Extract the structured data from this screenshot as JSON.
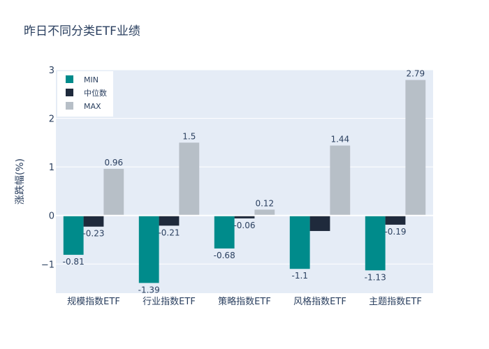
{
  "chart_data": {
    "type": "bar",
    "title": "昨日不同分类ETF业绩",
    "xlabel": "",
    "ylabel": "涨跌幅(%)",
    "categories": [
      "规模指数ETF",
      "行业指数ETF",
      "策略指数ETF",
      "风格指数ETF",
      "主题指数ETF"
    ],
    "series": [
      {
        "name": "MIN",
        "color": "#008b8b",
        "values": [
          -0.81,
          -1.39,
          -0.68,
          -1.1,
          -1.13
        ],
        "labels": [
          "-0.81",
          "-1.39",
          "-0.68",
          "-1.1",
          "-1.13"
        ]
      },
      {
        "name": "中位数",
        "color": "#1f2a3c",
        "values": [
          -0.23,
          -0.21,
          -0.06,
          -0.32,
          -0.19
        ],
        "labels": [
          "-0.23",
          "-0.21",
          "-0.06",
          "",
          "-0.19"
        ]
      },
      {
        "name": "MAX",
        "color": "#b7bfc7",
        "values": [
          0.96,
          1.5,
          0.12,
          1.44,
          2.79
        ],
        "labels": [
          "0.96",
          "1.5",
          "0.12",
          "1.44",
          "2.79"
        ]
      }
    ],
    "yticks": [
      {
        "value": -1,
        "label": "−1"
      },
      {
        "value": 0,
        "label": "0"
      },
      {
        "value": 1,
        "label": "1"
      },
      {
        "value": 2,
        "label": "2"
      },
      {
        "value": 3,
        "label": "3"
      }
    ],
    "ylim": [
      -1.6,
      3.0
    ],
    "grid": true,
    "legend_position": "top-left",
    "plot_bg": "#e5ecf6",
    "grid_color": "#ffffff"
  }
}
